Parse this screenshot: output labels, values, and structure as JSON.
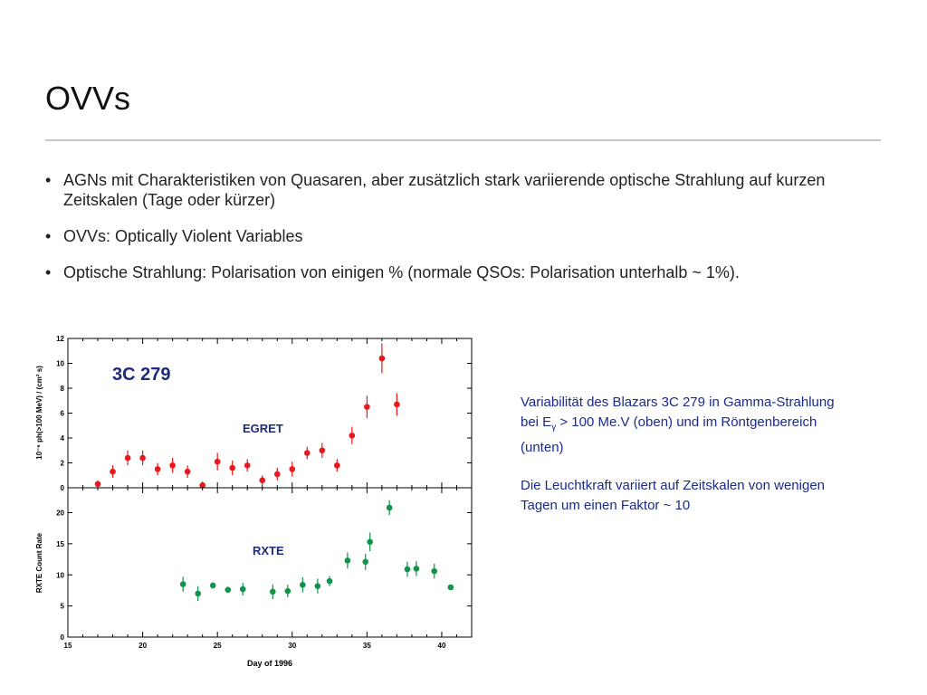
{
  "slide": {
    "title": "OVVs",
    "bullets": [
      "AGNs mit Charakteristiken von Quasaren, aber zusätzlich stark variierende optische Strahlung auf kurzen Zeitskalen (Tage oder kürzer)",
      "OVVs: Optically Violent Variables",
      "Optische Strahlung: Polarisation von einigen % (normale QSOs: Polarisation unterhalb ~ 1%)."
    ],
    "bullet_symbol": "•",
    "caption": {
      "p1_before": "Variabilität des Blazars 3C 279 in Gamma-Strahlung bei E",
      "p1_sub": "γ",
      "p1_after": " > 100 Me.V (oben) und im Röntgenbereich (unten)",
      "p2": "Die Leuchtkraft variiert auf Zeitskalen von wenigen Tagen um einen Faktor ~ 10"
    },
    "colors": {
      "text": "#222222",
      "caption": "#1a2a8a",
      "rule": "#c8c8c8",
      "egret": "#e8181c",
      "rxte": "#12934a",
      "label_navy": "#1f2a7a"
    }
  },
  "chart_data": [
    {
      "type": "scatter",
      "name": "EGRET",
      "title": "3C 279",
      "panel_label": "EGRET",
      "ylabel": "10⁻⁶ ph(>100 MeV) / (cm² s)",
      "xlim": [
        15,
        42
      ],
      "ylim": [
        0,
        12
      ],
      "yticks": [
        0,
        2,
        4,
        6,
        8,
        10,
        12
      ],
      "color": "#e8181c",
      "points": [
        {
          "x": 17.0,
          "y": 0.3,
          "err": 0.3
        },
        {
          "x": 18.0,
          "y": 1.3,
          "err": 0.5
        },
        {
          "x": 19.0,
          "y": 2.4,
          "err": 0.6
        },
        {
          "x": 20.0,
          "y": 2.4,
          "err": 0.6
        },
        {
          "x": 21.0,
          "y": 1.5,
          "err": 0.5
        },
        {
          "x": 22.0,
          "y": 1.8,
          "err": 0.6
        },
        {
          "x": 23.0,
          "y": 1.3,
          "err": 0.5
        },
        {
          "x": 24.0,
          "y": 0.2,
          "err": 0.3
        },
        {
          "x": 25.0,
          "y": 2.1,
          "err": 0.7
        },
        {
          "x": 26.0,
          "y": 1.6,
          "err": 0.6
        },
        {
          "x": 27.0,
          "y": 1.8,
          "err": 0.5
        },
        {
          "x": 28.0,
          "y": 0.6,
          "err": 0.4
        },
        {
          "x": 29.0,
          "y": 1.1,
          "err": 0.5
        },
        {
          "x": 30.0,
          "y": 1.5,
          "err": 0.6
        },
        {
          "x": 31.0,
          "y": 2.8,
          "err": 0.5
        },
        {
          "x": 32.0,
          "y": 3.0,
          "err": 0.6
        },
        {
          "x": 33.0,
          "y": 1.8,
          "err": 0.5
        },
        {
          "x": 34.0,
          "y": 4.2,
          "err": 0.7
        },
        {
          "x": 35.0,
          "y": 6.5,
          "err": 0.9
        },
        {
          "x": 36.0,
          "y": 10.4,
          "err": 1.2
        },
        {
          "x": 37.0,
          "y": 6.7,
          "err": 0.9
        }
      ]
    },
    {
      "type": "scatter",
      "name": "RXTE",
      "panel_label": "RXTE",
      "xlabel": "Day of 1996",
      "ylabel": "RXTE Count Rate",
      "xlim": [
        15,
        42
      ],
      "ylim": [
        0,
        24
      ],
      "xticks": [
        15,
        20,
        25,
        30,
        35,
        40
      ],
      "yticks": [
        0,
        5,
        10,
        15,
        20
      ],
      "color": "#12934a",
      "points": [
        {
          "x": 22.7,
          "y": 8.5,
          "err": 1.2
        },
        {
          "x": 23.7,
          "y": 7.0,
          "err": 1.2
        },
        {
          "x": 24.7,
          "y": 8.3,
          "err": 0.5
        },
        {
          "x": 25.7,
          "y": 7.6,
          "err": 0.5
        },
        {
          "x": 26.7,
          "y": 7.7,
          "err": 1.0
        },
        {
          "x": 28.7,
          "y": 7.3,
          "err": 1.2
        },
        {
          "x": 29.7,
          "y": 7.4,
          "err": 1.0
        },
        {
          "x": 30.7,
          "y": 8.4,
          "err": 1.2
        },
        {
          "x": 31.7,
          "y": 8.2,
          "err": 1.2
        },
        {
          "x": 32.5,
          "y": 9.0,
          "err": 0.8
        },
        {
          "x": 33.7,
          "y": 12.3,
          "err": 1.3
        },
        {
          "x": 34.9,
          "y": 12.1,
          "err": 1.3
        },
        {
          "x": 35.2,
          "y": 15.3,
          "err": 1.5
        },
        {
          "x": 36.5,
          "y": 20.8,
          "err": 1.2
        },
        {
          "x": 37.7,
          "y": 10.9,
          "err": 1.2
        },
        {
          "x": 38.3,
          "y": 11.0,
          "err": 1.2
        },
        {
          "x": 39.5,
          "y": 10.6,
          "err": 1.2
        },
        {
          "x": 40.6,
          "y": 8.0,
          "err": 0.4
        }
      ]
    }
  ]
}
